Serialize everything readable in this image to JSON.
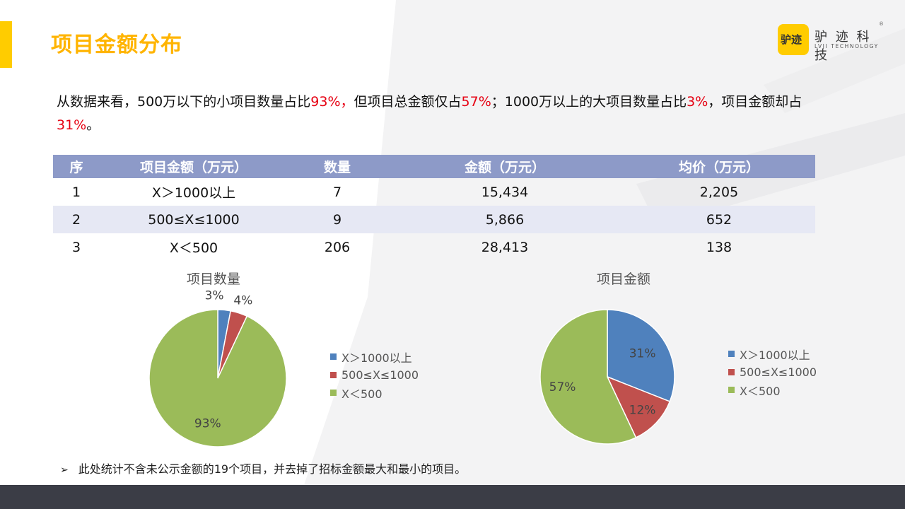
{
  "page": {
    "title": "项目金额分布"
  },
  "logo": {
    "badge_text": "驴迹",
    "name_cn": "驴 迹 科 技",
    "name_en": "LVJI TECHNOLOGY",
    "reg": "®"
  },
  "summary": {
    "p1": "从数据来看，500万以下的小项目数量占比",
    "v1": "93%，",
    "p2": "但项目总金额仅占",
    "v2": "57%",
    "p3": "；1000万以上的大项目数量占比",
    "v3": "3%",
    "p4": "，项目金额却占",
    "v4": "31%",
    "p5": "。"
  },
  "table": {
    "headers": [
      "序",
      "项目金额（万元）",
      "数量",
      "金额（万元）",
      "均价（万元）"
    ],
    "rows": [
      [
        "1",
        "X＞1000以上",
        "7",
        "15,434",
        "2,205"
      ],
      [
        "2",
        "500≤X≤1000",
        "9",
        "5,866",
        "652"
      ],
      [
        "3",
        "X＜500",
        "206",
        "28,413",
        "138"
      ]
    ]
  },
  "chart_data": [
    {
      "type": "pie",
      "title": "项目数量",
      "categories": [
        "X＞1000以上",
        "500≤X≤1000",
        "X＜500"
      ],
      "values": [
        3,
        4,
        93
      ],
      "labels": [
        "3%",
        "4%",
        "93%"
      ],
      "colors": [
        "#4f81bd",
        "#c0504d",
        "#9bbb59"
      ],
      "legend": "right"
    },
    {
      "type": "pie",
      "title": "项目金额",
      "categories": [
        "X＞1000以上",
        "500≤X≤1000",
        "X＜500"
      ],
      "values": [
        31,
        12,
        57
      ],
      "labels": [
        "31%",
        "12%",
        "57%"
      ],
      "colors": [
        "#4f81bd",
        "#c0504d",
        "#9bbb59"
      ],
      "legend": "right"
    }
  ],
  "note": {
    "icon": "arrow-bullet-icon",
    "text": "此处统计不含未公示金额的19个项目，并去掉了招标金额最大和最小的项目。"
  }
}
